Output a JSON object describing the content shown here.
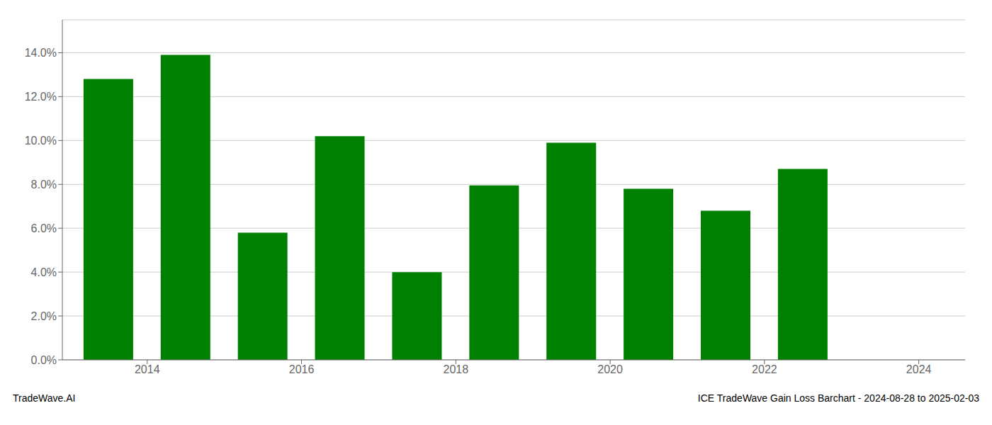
{
  "chart_data": {
    "type": "bar",
    "title": "ICE TradeWave Gain Loss Barchart - 2024-08-28 to 2025-02-03",
    "annotations": [
      "TradeWave.AI"
    ],
    "x": [
      2013,
      2014,
      2015,
      2016,
      2017,
      2018,
      2019,
      2020,
      2021,
      2022
    ],
    "values": [
      0.128,
      0.139,
      0.058,
      0.102,
      0.04,
      0.0795,
      0.099,
      0.078,
      0.068,
      0.087
    ],
    "color": "#008000",
    "xlim": [
      2012.4,
      2024.1
    ],
    "xticks": [
      {
        "value": 2013.5,
        "label": "2014"
      },
      {
        "value": 2015.5,
        "label": "2016"
      },
      {
        "value": 2017.5,
        "label": "2018"
      },
      {
        "value": 2019.5,
        "label": "2020"
      },
      {
        "value": 2021.5,
        "label": "2022"
      },
      {
        "value": 2023.5,
        "label": "2024"
      }
    ],
    "ylim": [
      0,
      0.155
    ],
    "yticks": [
      {
        "value": 0.0,
        "label": "0.0%"
      },
      {
        "value": 0.02,
        "label": "2.0%"
      },
      {
        "value": 0.04,
        "label": "4.0%"
      },
      {
        "value": 0.06,
        "label": "6.0%"
      },
      {
        "value": 0.08,
        "label": "8.0%"
      },
      {
        "value": 0.1,
        "label": "10.0%"
      },
      {
        "value": 0.12,
        "label": "12.0%"
      },
      {
        "value": 0.14,
        "label": "14.0%"
      }
    ],
    "grid": true
  }
}
